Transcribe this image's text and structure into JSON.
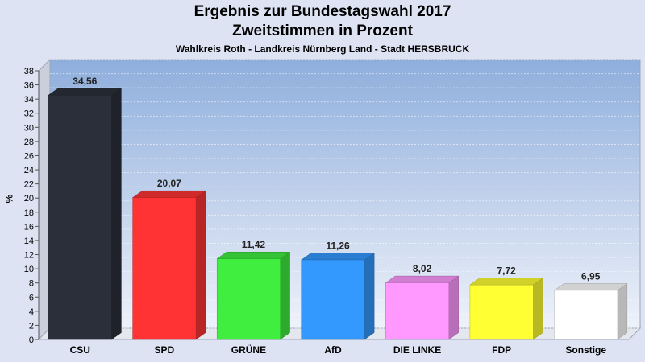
{
  "chart_data": {
    "type": "bar",
    "title": "Ergebnis zur Bundestagswahl 2017",
    "subtitle": "Zweitstimmen in Prozent",
    "subtitle2": "Wahlkreis Roth - Landkreis Nürnberg Land - Stadt HERSBRUCK",
    "ylabel": "%",
    "ylim": [
      0,
      38
    ],
    "yticks": [
      0,
      2,
      4,
      6,
      8,
      10,
      12,
      14,
      16,
      18,
      20,
      22,
      24,
      26,
      28,
      30,
      32,
      34,
      36,
      38
    ],
    "grid": true,
    "categories": [
      "CSU",
      "SPD",
      "GRÜNE",
      "AfD",
      "DIE LINKE",
      "FDP",
      "Sonstige"
    ],
    "values": [
      34.56,
      20.07,
      11.42,
      11.26,
      8.02,
      7.72,
      6.95
    ],
    "value_labels": [
      "34,56",
      "20,07",
      "11,42",
      "11,26",
      "8,02",
      "7,72",
      "6,95"
    ],
    "colors": [
      "#2b2f3a",
      "#ff3333",
      "#40ee40",
      "#3399ff",
      "#ff99ff",
      "#ffff33",
      "#ffffff"
    ]
  }
}
